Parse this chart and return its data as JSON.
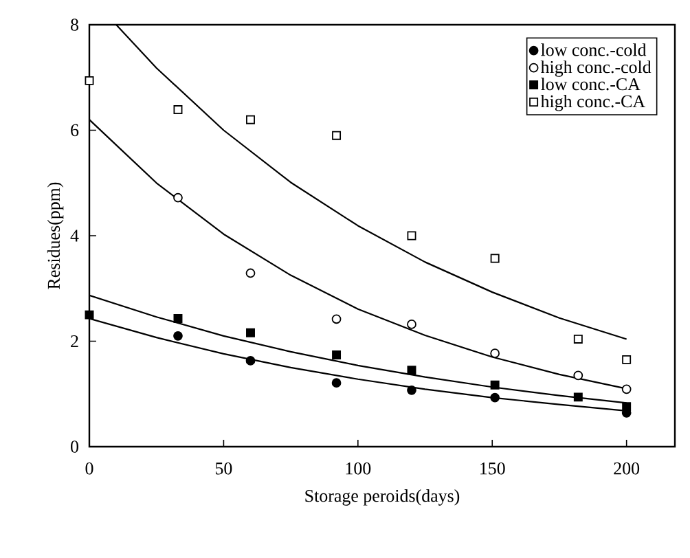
{
  "chart_data": {
    "type": "scatter",
    "xlabel": "Storage peroids(days)",
    "ylabel": "Residues(ppm)",
    "xlim": [
      0,
      218
    ],
    "ylim": [
      0,
      8
    ],
    "xticks": [
      0,
      50,
      100,
      150,
      200
    ],
    "yticks": [
      0,
      2,
      4,
      6,
      8
    ],
    "grid": false,
    "legend": "top right",
    "series": [
      {
        "name": "low conc.-cold",
        "color": "#000000",
        "marker": "circle",
        "x": [
          33,
          60,
          92,
          120,
          151,
          200
        ],
        "values": [
          2.1,
          1.63,
          1.21,
          1.07,
          0.93,
          0.64
        ]
      },
      {
        "name": "high conc.-cold",
        "color": "#ffffff",
        "marker": "circle",
        "x": [
          33,
          60,
          92,
          120,
          151,
          182,
          200
        ],
        "values": [
          4.72,
          3.29,
          2.42,
          2.32,
          1.77,
          1.35,
          1.09
        ]
      },
      {
        "name": "low conc.-CA",
        "color": "#000000",
        "marker": "square",
        "x": [
          0,
          33,
          60,
          92,
          120,
          151,
          182,
          200
        ],
        "values": [
          2.5,
          2.43,
          2.16,
          1.74,
          1.45,
          1.17,
          0.94,
          0.76
        ]
      },
      {
        "name": "high conc.-CA",
        "color": "#ffffff",
        "marker": "square",
        "x": [
          0,
          33,
          60,
          92,
          120,
          151,
          182,
          200
        ],
        "values": [
          6.94,
          6.39,
          6.2,
          5.9,
          4.0,
          3.57,
          2.04,
          1.65
        ]
      },
      {
        "type": "line",
        "color": "#000000",
        "marker": "none",
        "line_style": "solid",
        "x": [
          0,
          25,
          50,
          75,
          100,
          125,
          150,
          175,
          200
        ],
        "values": [
          2.43,
          2.07,
          1.76,
          1.5,
          1.28,
          1.09,
          0.93,
          0.8,
          0.68
        ]
      },
      {
        "type": "line",
        "color": "#000000",
        "marker": "none",
        "line_style": "solid",
        "x": [
          0,
          25,
          50,
          75,
          100,
          125,
          150,
          175,
          200
        ],
        "values": [
          6.2,
          5.0,
          4.03,
          3.25,
          2.61,
          2.11,
          1.7,
          1.37,
          1.1
        ]
      },
      {
        "type": "line",
        "color": "#000000",
        "marker": "none",
        "line_style": "solid",
        "x": [
          0,
          25,
          50,
          75,
          100,
          125,
          150,
          175,
          200
        ],
        "values": [
          2.87,
          2.46,
          2.1,
          1.8,
          1.54,
          1.32,
          1.13,
          0.97,
          0.83
        ]
      },
      {
        "type": "line",
        "color": "#000000",
        "marker": "none",
        "line_style": "solid",
        "x": [
          10,
          25,
          50,
          75,
          100,
          125,
          150,
          175,
          200
        ],
        "values": [
          8.0,
          7.18,
          6.0,
          5.01,
          4.19,
          3.5,
          2.93,
          2.44,
          2.04
        ]
      }
    ]
  }
}
